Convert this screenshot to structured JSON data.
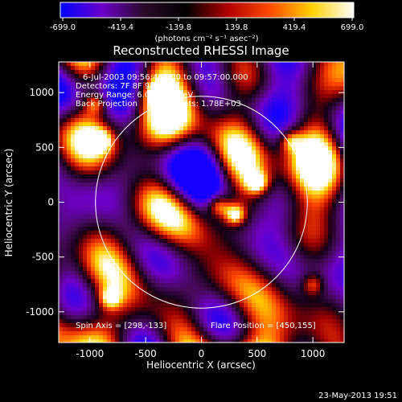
{
  "chart_data": {
    "type": "heatmap",
    "title": "Reconstructed RHESSI Image",
    "xlabel": "Heliocentric X (arcsec)",
    "ylabel": "Heliocentric Y (arcsec)",
    "xlim": [
      -1280,
      1280
    ],
    "ylim": [
      -1280,
      1280
    ],
    "x_ticks": [
      -1000,
      -500,
      0,
      500,
      1000
    ],
    "y_ticks": [
      -1000,
      -500,
      0,
      500,
      1000
    ],
    "colorbar": {
      "min": -699.0,
      "max": 699.0,
      "tick_labels": [
        "-699.0",
        "-419.4",
        "-139.8",
        "139.8",
        "419.4",
        "699.0"
      ],
      "unit_label": "(photons cm⁻² s⁻¹ asec⁻²)",
      "colors": [
        "#0000ff",
        "#6a00c8",
        "#2a0a2a",
        "#000000",
        "#b00000",
        "#ff4a00",
        "#ffd000",
        "#ffffff"
      ]
    },
    "annotations": [
      "6-Jul-2003 09:56:40.000 to 09:57:00.000",
      "Detectors: 7F 8F 9F, Att 0",
      "Energy Range: 6.0 - 25.0 keV",
      "Back Projection    Total counts: 1.78E+03"
    ],
    "footer_left": "Spin Axis = [298,-133]",
    "footer_right": "Flare Position = [450,155]",
    "solar_disk": {
      "center": [
        0,
        0
      ],
      "radius": 950
    },
    "cross_marker": [
      298,
      -133
    ],
    "bright_sources": [
      {
        "x": 300,
        "y": -110,
        "amp": 0.95
      },
      {
        "x": 150,
        "y": -30,
        "amp": 0.8
      },
      {
        "x": 500,
        "y": 180,
        "amp": 0.8
      },
      {
        "x": -950,
        "y": 900,
        "amp": 0.7
      },
      {
        "x": -900,
        "y": 560,
        "amp": 0.6
      },
      {
        "x": -820,
        "y": -880,
        "amp": 0.65
      },
      {
        "x": 1000,
        "y": -750,
        "amp": 0.6
      },
      {
        "x": 800,
        "y": 560,
        "amp": 0.6
      },
      {
        "x": -400,
        "y": 1000,
        "amp": 0.5
      }
    ]
  },
  "timestamp": "23-May-2013 19:51"
}
